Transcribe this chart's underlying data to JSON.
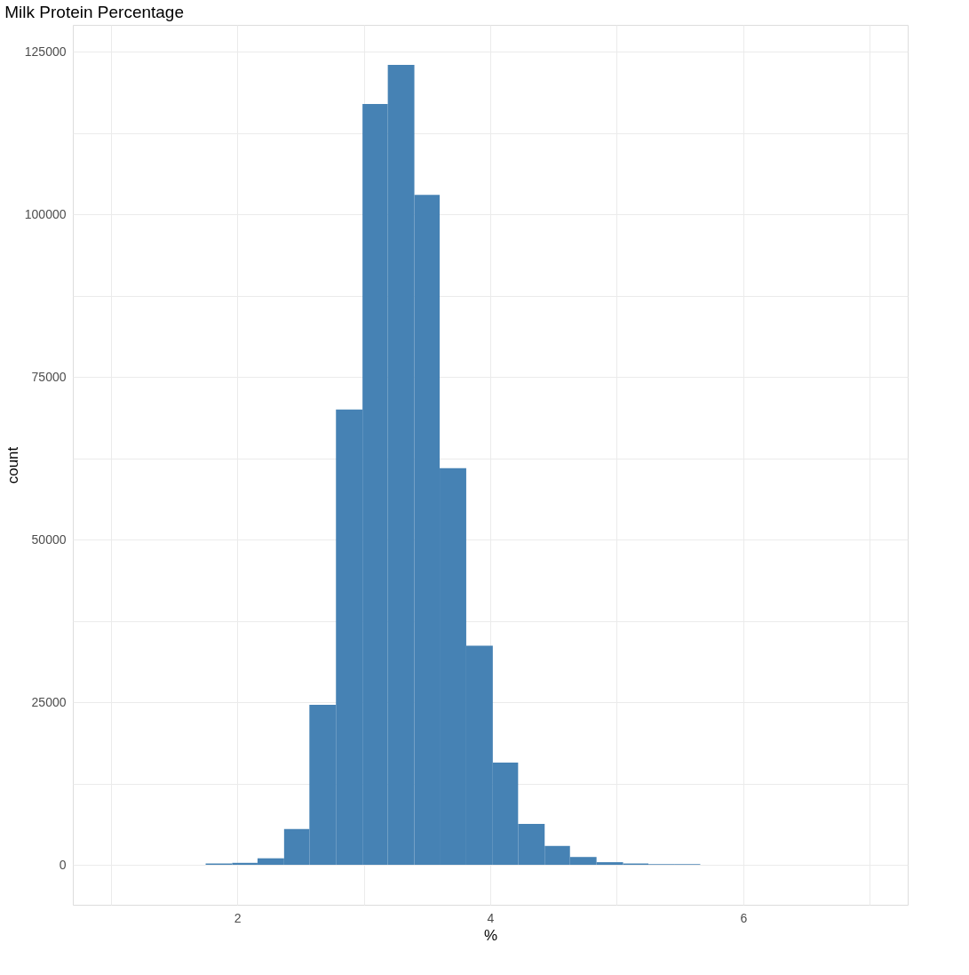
{
  "chart_data": {
    "type": "histogram",
    "title": "Milk Protein Percentage",
    "xlabel": "%",
    "ylabel": "count",
    "bins": [
      1.75,
      1.96,
      2.16,
      2.37,
      2.57,
      2.78,
      2.99,
      3.19,
      3.4,
      3.6,
      3.81,
      4.02,
      4.22,
      4.43,
      4.63,
      4.84,
      5.05,
      5.25,
      5.46,
      5.66
    ],
    "values": [
      200,
      300,
      1000,
      5500,
      24600,
      70000,
      117000,
      123000,
      103000,
      61000,
      33700,
      15700,
      6300,
      2900,
      1200,
      400,
      200,
      100,
      100
    ],
    "color": "#4682b4",
    "xlim": [
      0.7,
      7.3
    ],
    "xticks": [
      {
        "value": 1,
        "label": null
      },
      2,
      {
        "value": 3,
        "label": null
      },
      4,
      {
        "value": 5,
        "label": null
      },
      6,
      {
        "value": 7,
        "label": null
      }
    ],
    "ylim": [
      -6150,
      129150
    ],
    "yticks": [
      0,
      {
        "value": 12500,
        "label": null
      },
      25000,
      {
        "value": 37500,
        "label": null
      },
      50000,
      {
        "value": 62500,
        "label": null
      },
      75000,
      {
        "value": 87500,
        "label": null
      },
      100000,
      {
        "value": 112500,
        "label": null
      },
      125000
    ],
    "grid": true
  }
}
